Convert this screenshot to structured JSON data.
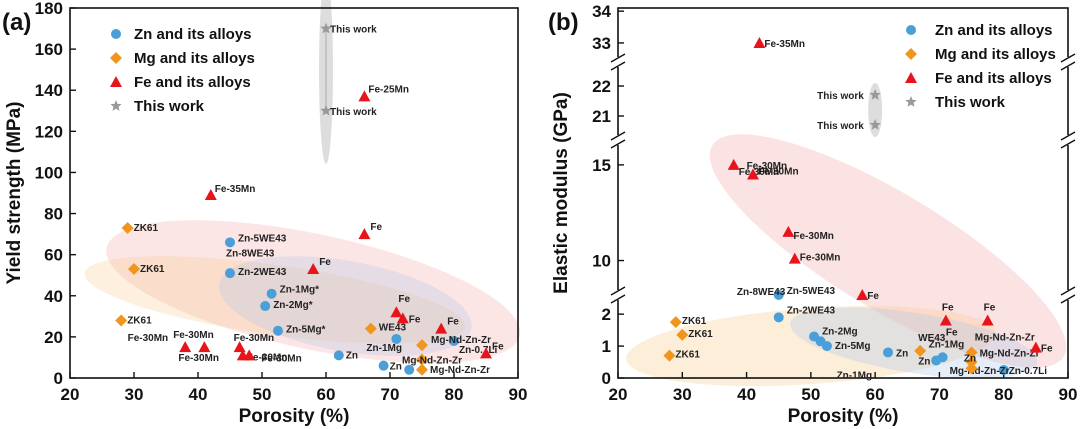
{
  "chart_data": [
    {
      "panel": "(a)",
      "type": "scatter",
      "xlabel": "Porosity (%)",
      "ylabel": "Yield strength (MPa)",
      "xlim": [
        20,
        90
      ],
      "ylim": [
        0,
        180
      ],
      "xticks": [
        20,
        30,
        40,
        50,
        60,
        70,
        80,
        90
      ],
      "yticks": [
        0,
        20,
        40,
        60,
        80,
        100,
        120,
        140,
        160,
        180
      ],
      "legend": {
        "position": "top-left",
        "entries": [
          "Zn and its alloys",
          "Mg and its alloys",
          "Fe and its alloys",
          "This work"
        ]
      },
      "series": [
        {
          "name": "Zn and its alloys",
          "marker": "circle",
          "color": "#4a9fd8",
          "points": [
            {
              "x": 45,
              "y": 66,
              "label": "Zn-5WE43"
            },
            {
              "x": 45,
              "y": 51,
              "label": "Zn-2WE43"
            },
            {
              "x": 51.5,
              "y": 41,
              "label": "Zn-1Mg*"
            },
            {
              "x": 50.5,
              "y": 35,
              "label": "Zn-2Mg*"
            },
            {
              "x": 52.5,
              "y": 23,
              "label": "Zn-5Mg*"
            },
            {
              "x": 62,
              "y": 11,
              "label": "Zn"
            },
            {
              "x": 69,
              "y": 6,
              "label": "Zn"
            },
            {
              "x": 71,
              "y": 19,
              "label": "Zn-1Mg"
            },
            {
              "x": 73,
              "y": 4,
              "label": ""
            },
            {
              "x": 80,
              "y": 18,
              "label": "Zn-0.7Li"
            }
          ]
        },
        {
          "name": "Mg and its alloys",
          "marker": "diamond",
          "color": "#f0961e",
          "points": [
            {
              "x": 29,
              "y": 73,
              "label": "ZK61"
            },
            {
              "x": 30,
              "y": 53,
              "label": "ZK61"
            },
            {
              "x": 28,
              "y": 28,
              "label": "ZK61"
            },
            {
              "x": 67,
              "y": 24,
              "label": "WE43"
            },
            {
              "x": 75,
              "y": 16,
              "label": "Mg-Nd-Zn-Zr"
            },
            {
              "x": 75,
              "y": 9,
              "label": "Mg-Nd-Zn-Zr"
            },
            {
              "x": 75,
              "y": 4,
              "label": "Mg-Nd-Zn-Zr"
            }
          ]
        },
        {
          "name": "Fe and its alloys",
          "marker": "triangle",
          "color": "#e8141c",
          "points": [
            {
              "x": 42,
              "y": 89,
              "label": "Fe-35Mn"
            },
            {
              "x": 66,
              "y": 137,
              "label": "Fe-25Mn"
            },
            {
              "x": 66,
              "y": 70,
              "label": "Fe"
            },
            {
              "x": 58,
              "y": 53,
              "label": "Fe"
            },
            {
              "x": 71,
              "y": 32,
              "label": "Fe"
            },
            {
              "x": 72,
              "y": 29,
              "label": "Fe"
            },
            {
              "x": 78,
              "y": 24,
              "label": "Fe"
            },
            {
              "x": 85,
              "y": 12,
              "label": "Fe"
            },
            {
              "x": 38,
              "y": 15,
              "label": "Fe-30Mn"
            },
            {
              "x": 41,
              "y": 15,
              "label": "Fe-30Mn"
            },
            {
              "x": 46.5,
              "y": 15,
              "label": "Fe-30Mn"
            },
            {
              "x": 47,
              "y": 11,
              "label": "Fe-30Mn"
            },
            {
              "x": 48,
              "y": 11,
              "label": "Fe-30Mn"
            }
          ]
        },
        {
          "name": "This work",
          "marker": "star",
          "color": "#999999",
          "points": [
            {
              "x": 60,
              "y": 170,
              "label": "This work"
            },
            {
              "x": 60,
              "y": 130,
              "label": "This work"
            }
          ]
        }
      ]
    },
    {
      "panel": "(b)",
      "type": "scatter",
      "xlabel": "Porosity (%)",
      "ylabel": "Elastic modulus (GPa)",
      "xlim": [
        20,
        90
      ],
      "axis_break": "broken y-axis",
      "yticks": [
        0,
        1,
        2,
        10,
        15,
        21,
        22,
        33,
        34
      ],
      "xticks": [
        20,
        30,
        40,
        50,
        60,
        70,
        80,
        90
      ],
      "legend": {
        "position": "top-right",
        "entries": [
          "Zn and its alloys",
          "Mg and its alloys",
          "Fe and its alloys",
          "This work"
        ]
      },
      "series": [
        {
          "name": "Zn and its alloys",
          "marker": "circle",
          "color": "#4a9fd8",
          "points": [
            {
              "x": 45,
              "y": 2.6,
              "label": "Zn-5WE43"
            },
            {
              "x": 45,
              "y": 1.9,
              "label": "Zn-2WE43"
            },
            {
              "x": 50.5,
              "y": 1.3,
              "label": "Zn-2Mg"
            },
            {
              "x": 51.5,
              "y": 1.15,
              "label": ""
            },
            {
              "x": 52.5,
              "y": 1.0,
              "label": "Zn-5Mg"
            },
            {
              "x": 62,
              "y": 0.8,
              "label": "Zn"
            },
            {
              "x": 69.5,
              "y": 0.55,
              "label": "Zn"
            },
            {
              "x": 70.5,
              "y": 0.65,
              "label": "Zn-1Mg"
            },
            {
              "x": 80,
              "y": 0.25,
              "label": "Zn-0.7Li"
            }
          ]
        },
        {
          "name": "Mg and its alloys",
          "marker": "diamond",
          "color": "#f0961e",
          "points": [
            {
              "x": 29,
              "y": 1.75,
              "label": "ZK61"
            },
            {
              "x": 30,
              "y": 1.35,
              "label": "ZK61"
            },
            {
              "x": 28,
              "y": 0.7,
              "label": "ZK61"
            },
            {
              "x": 67,
              "y": 0.85,
              "label": "WE43"
            },
            {
              "x": 75,
              "y": 0.8,
              "label": "Mg-Nd-Zn-Zr"
            },
            {
              "x": 75,
              "y": 0.5,
              "label": "Mg-Nd-Zn-Zr"
            },
            {
              "x": 75,
              "y": 0.3,
              "label": ""
            }
          ]
        },
        {
          "name": "Fe and its alloys",
          "marker": "triangle",
          "color": "#e8141c",
          "points": [
            {
              "x": 42,
              "y": 33,
              "label": "Fe-35Mn"
            },
            {
              "x": 38,
              "y": 15,
              "label": "Fe-30Mn"
            },
            {
              "x": 41,
              "y": 14.5,
              "label": "Fe-30Mn"
            },
            {
              "x": 46.5,
              "y": 11.5,
              "label": "Fe-30Mn"
            },
            {
              "x": 47.5,
              "y": 10.1,
              "label": "Fe-30Mn"
            },
            {
              "x": 58,
              "y": 2.6,
              "label": "Fe"
            },
            {
              "x": 71,
              "y": 1.8,
              "label": "Fe"
            },
            {
              "x": 77.5,
              "y": 1.8,
              "label": "Fe"
            },
            {
              "x": 85,
              "y": 0.95,
              "label": "Fe"
            }
          ]
        },
        {
          "name": "This work",
          "marker": "star",
          "color": "#999999",
          "points": [
            {
              "x": 60,
              "y": 21.7,
              "label": "This work"
            },
            {
              "x": 60,
              "y": 20.7,
              "label": "This work"
            }
          ]
        }
      ]
    }
  ],
  "extra_labels": {
    "a": [
      "Fe-30Mn",
      "Zn-8WE43"
    ],
    "b": [
      "Zn-8WE43",
      "Fe-30Mn",
      "Mg-Nd-Zn-Zr",
      "Zn-1Mg",
      "Zn",
      "Fe"
    ]
  }
}
